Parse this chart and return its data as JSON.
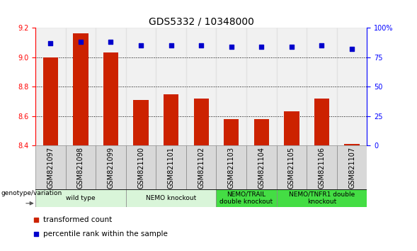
{
  "title": "GDS5332 / 10348000",
  "samples": [
    "GSM821097",
    "GSM821098",
    "GSM821099",
    "GSM821100",
    "GSM821101",
    "GSM821102",
    "GSM821103",
    "GSM821104",
    "GSM821105",
    "GSM821106",
    "GSM821107"
  ],
  "bar_values": [
    9.0,
    9.16,
    9.03,
    8.71,
    8.75,
    8.72,
    8.58,
    8.58,
    8.63,
    8.72,
    8.41
  ],
  "percentile_values": [
    87,
    88,
    88,
    85,
    85,
    85,
    84,
    84,
    84,
    85,
    82
  ],
  "ylim_left": [
    8.4,
    9.2
  ],
  "ylim_right": [
    0,
    100
  ],
  "yticks_left": [
    8.4,
    8.6,
    8.8,
    9.0,
    9.2
  ],
  "yticks_right": [
    0,
    25,
    50,
    75,
    100
  ],
  "bar_color": "#cc2200",
  "scatter_color": "#0000cc",
  "groups_full": [
    {
      "label": "wild type",
      "indices": [
        0,
        1,
        2
      ],
      "color": "#d9f5d9"
    },
    {
      "label": "NEMO knockout",
      "indices": [
        3,
        4,
        5
      ],
      "color": "#d9f5d9"
    },
    {
      "label": "NEMO/TRAIL\ndouble knockout",
      "indices": [
        6,
        7
      ],
      "color": "#44dd44"
    },
    {
      "label": "NEMO/TNFR1 double\nknockout",
      "indices": [
        8,
        9,
        10
      ],
      "color": "#44dd44"
    }
  ],
  "legend_bar_label": "transformed count",
  "legend_scatter_label": "percentile rank within the sample",
  "genotype_label": "genotype/variation",
  "title_fontsize": 10,
  "tick_fontsize": 7,
  "label_fontsize": 7,
  "group_fontsize": 6.5
}
